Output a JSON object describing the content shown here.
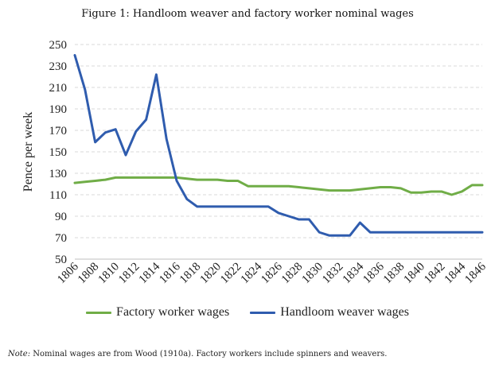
{
  "figure": {
    "title": "Figure 1: Handloom weaver and factory worker nominal wages",
    "note_label": "Note:",
    "note_text": "Nominal wages are from Wood (1910a). Factory workers include spinners and weavers."
  },
  "chart_data": {
    "type": "line",
    "title": "Figure 1: Handloom weaver and factory worker nominal wages",
    "xlabel": "",
    "ylabel": "Pence per week",
    "ylim": [
      50,
      250
    ],
    "yticks": [
      50,
      70,
      90,
      110,
      130,
      150,
      170,
      190,
      210,
      230,
      250
    ],
    "xticks": [
      1806,
      1808,
      1810,
      1812,
      1814,
      1816,
      1818,
      1820,
      1822,
      1824,
      1826,
      1828,
      1830,
      1832,
      1834,
      1836,
      1838,
      1840,
      1842,
      1844,
      1846
    ],
    "x": [
      1806,
      1807,
      1808,
      1809,
      1810,
      1811,
      1812,
      1813,
      1814,
      1815,
      1816,
      1817,
      1818,
      1819,
      1820,
      1821,
      1822,
      1823,
      1824,
      1825,
      1826,
      1827,
      1828,
      1829,
      1830,
      1831,
      1832,
      1833,
      1834,
      1835,
      1836,
      1837,
      1838,
      1839,
      1840,
      1841,
      1842,
      1843,
      1844,
      1845,
      1846
    ],
    "grid": true,
    "legend_position": "bottom",
    "series": [
      {
        "name": "Factory worker wages",
        "color": "#70ad47",
        "values": [
          121,
          122,
          123,
          124,
          126,
          126,
          126,
          126,
          126,
          126,
          126,
          125,
          124,
          124,
          124,
          123,
          123,
          118,
          118,
          118,
          118,
          118,
          117,
          116,
          115,
          114,
          114,
          114,
          115,
          116,
          117,
          117,
          116,
          112,
          112,
          113,
          113,
          110,
          113,
          119,
          119
        ]
      },
      {
        "name": "Handloom weaver wages",
        "color": "#2f5cae",
        "values": [
          240,
          208,
          159,
          168,
          171,
          147,
          169,
          180,
          222,
          162,
          123,
          106,
          99,
          99,
          99,
          99,
          99,
          99,
          99,
          99,
          93,
          90,
          87,
          87,
          75,
          72,
          72,
          72,
          84,
          75,
          75,
          75,
          75,
          75,
          75,
          75,
          75,
          75,
          75,
          75,
          75
        ]
      }
    ]
  }
}
